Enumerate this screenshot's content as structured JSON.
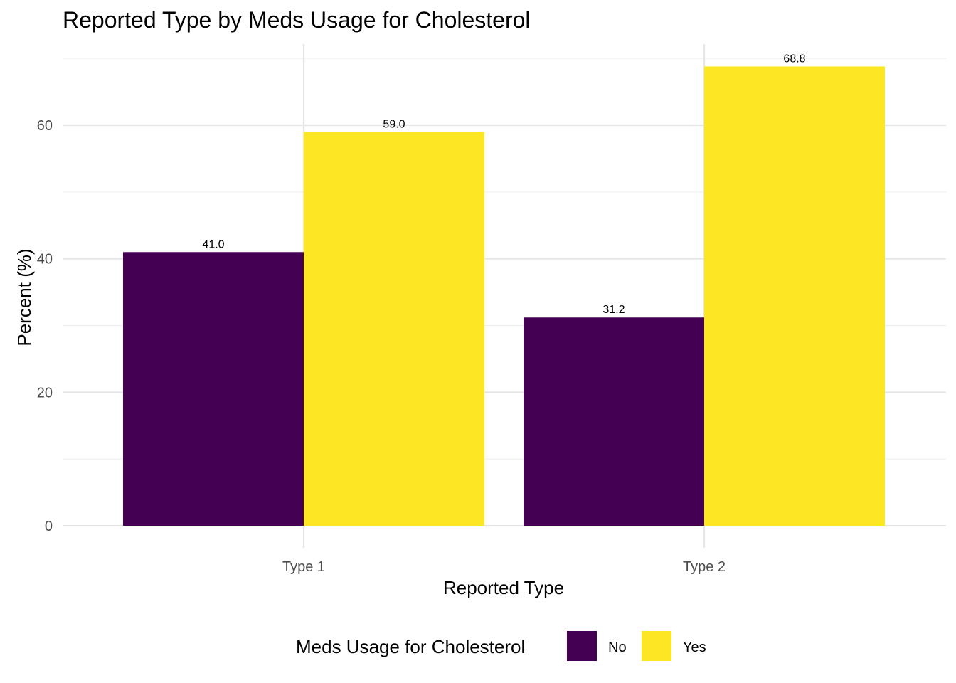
{
  "chart_data": {
    "type": "bar",
    "title": "Reported Type by Meds Usage for Cholesterol",
    "xlabel": "Reported Type",
    "ylabel": "Percent (%)",
    "categories": [
      "Type 1",
      "Type 2"
    ],
    "series": [
      {
        "name": "No",
        "values": [
          41.0,
          31.2
        ],
        "color": "#440154",
        "labels": [
          "41.0",
          "31.2"
        ]
      },
      {
        "name": "Yes",
        "values": [
          59.0,
          68.8
        ],
        "color": "#FDE725",
        "labels": [
          "59.0",
          "68.8"
        ]
      }
    ],
    "ylim": [
      0,
      70
    ],
    "yticks": [
      0,
      20,
      40,
      60
    ],
    "grid": true,
    "legend": {
      "title": "Meds Usage for Cholesterol",
      "position": "bottom"
    }
  }
}
